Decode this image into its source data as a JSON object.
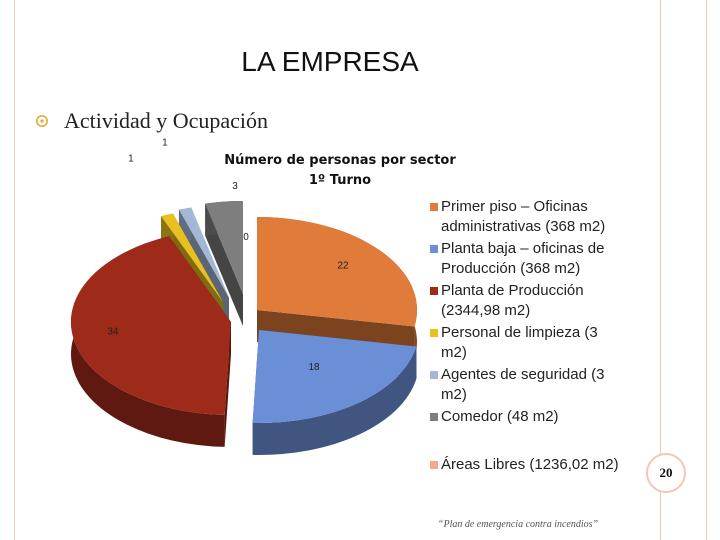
{
  "slide": {
    "title": "LA EMPRESA",
    "bullet": "Actividad y Ocupación",
    "footer": "“Plan de emergencia contra incendios”",
    "page_number": "20",
    "colors": {
      "border": "#f2c9bd",
      "bullet": "#e5ab3a",
      "page_badge_ring": "#f3c7b7"
    }
  },
  "chart_data": {
    "type": "pie",
    "style": "3d-exploded",
    "title": "Número de personas por sector",
    "subtitle": "1º Turno",
    "legend_position": "right",
    "slices": [
      {
        "label": "Primer piso – Oficinas administrativas (368 m2)",
        "value": 22,
        "display": "22",
        "color": "#e07b39"
      },
      {
        "label": "Planta baja – oficinas de Producción (368 m2)",
        "value": 18,
        "display": "18",
        "color": "#6b8fd6"
      },
      {
        "label": "Planta de Producción (2344,98 m2)",
        "value": 34,
        "display": "34",
        "color": "#9e2a1a"
      },
      {
        "label": "Personal de limpieza (3 m2)",
        "value": 1,
        "display": "1",
        "color": "#e8c120"
      },
      {
        "label": "Agentes de seguridad (3 m2)",
        "value": 1,
        "display": "1",
        "color": "#a3b8d6"
      },
      {
        "label": "Comedor  (48 m2)",
        "value": 3,
        "display": "3",
        "color": "#7e7e7e"
      },
      {
        "label": "Áreas Libres (1236,02 m2)",
        "value": 0,
        "display": "0",
        "color": "#f4a88c"
      }
    ]
  }
}
